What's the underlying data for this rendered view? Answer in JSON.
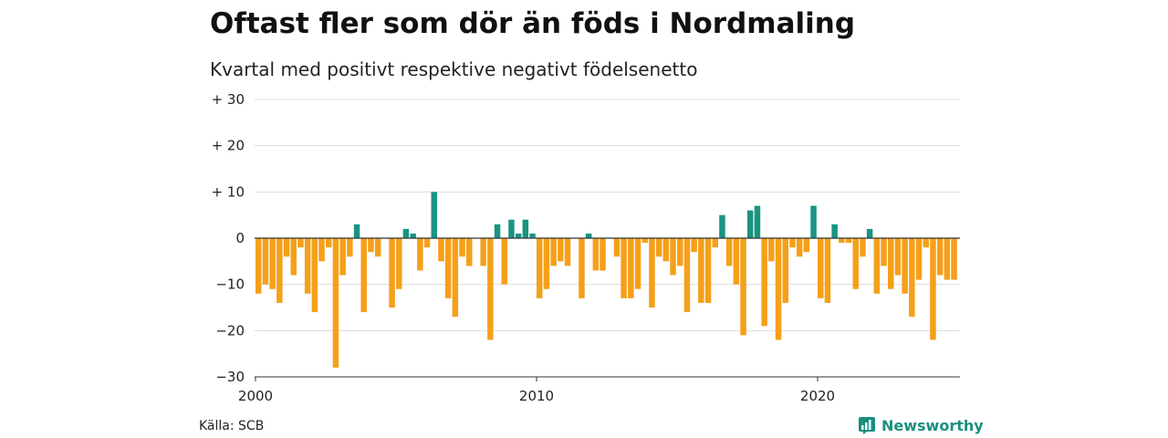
{
  "chart_data": {
    "type": "bar",
    "title": "Oftast fler som dör än föds i Nordmaling",
    "subtitle": "Kvartal med positivt respektive negativt födelsenetto",
    "ylim": [
      -30,
      30
    ],
    "y_ticks": [
      30,
      20,
      10,
      0,
      -10,
      -20,
      -30
    ],
    "y_tick_labels": [
      "+ 30",
      "+ 20",
      "+ 10",
      "0",
      "−10",
      "−20",
      "−30"
    ],
    "x_ticks": [
      2000,
      2010,
      2020
    ],
    "x_tick_labels": [
      "2000",
      "2010",
      "2020"
    ],
    "x_start": 2000,
    "grid": true,
    "colors": {
      "positive": "#1a9482",
      "negative": "#f5a01a",
      "grid": "#dddddd",
      "zero": "#333333"
    },
    "values": [
      -12,
      -10,
      -11,
      -14,
      -4,
      -8,
      -2,
      -12,
      -16,
      -5,
      -2,
      -28,
      -8,
      -4,
      3,
      -16,
      -3,
      -4,
      0,
      -15,
      -11,
      2,
      1,
      -7,
      -2,
      10,
      -5,
      -13,
      -17,
      -4,
      -6,
      0,
      -6,
      -22,
      3,
      -10,
      4,
      1,
      4,
      1,
      -13,
      -11,
      -6,
      -5,
      -6,
      0,
      -13,
      1,
      -7,
      -7,
      0,
      -4,
      -13,
      -13,
      -11,
      -1,
      -15,
      -4,
      -5,
      -8,
      -6,
      -16,
      -3,
      -14,
      -14,
      -2,
      5,
      -6,
      -10,
      -21,
      6,
      7,
      -19,
      -5,
      -22,
      -14,
      -2,
      -4,
      -3,
      7,
      -13,
      -14,
      3,
      -1,
      -1,
      -11,
      -4,
      2,
      -12,
      -6,
      -11,
      -8,
      -12,
      -17,
      -9,
      -2,
      -22,
      -8,
      -9,
      -9
    ]
  },
  "footer": {
    "source": "Källa: SCB",
    "brand": "Newsworthy"
  }
}
